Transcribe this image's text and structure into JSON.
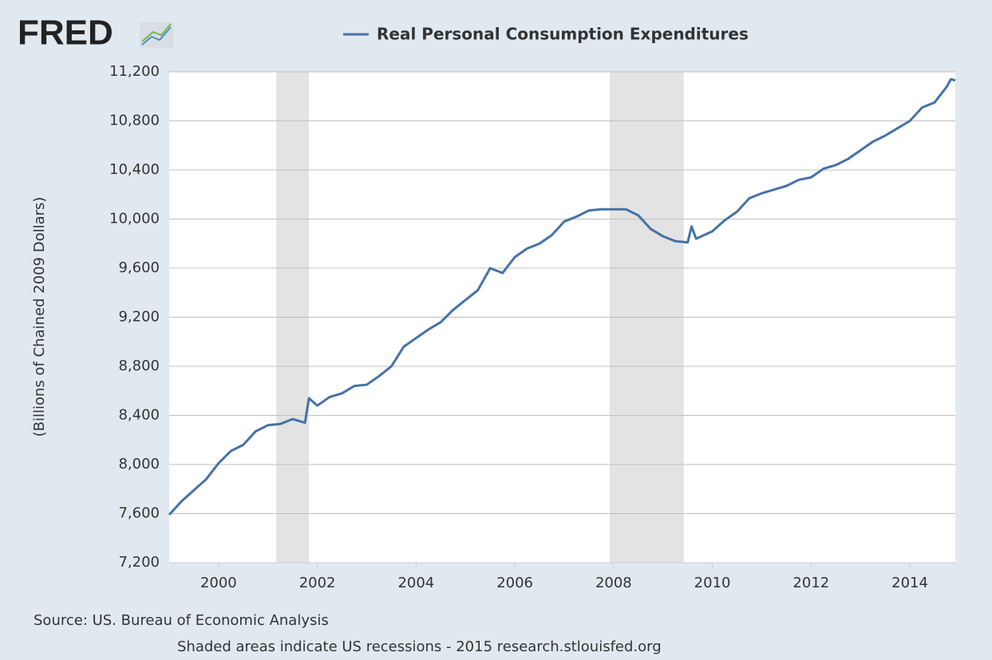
{
  "logo": "FRED",
  "chart_data": {
    "type": "line",
    "ylabel": "(Billions of Chained 2009 Dollars)",
    "source": "Source: US. Bureau of Economic Analysis",
    "note": "Shaded areas indicate US recessions - 2015 research.stlouisfed.org",
    "x": [
      1999.0,
      1999.25,
      1999.5,
      1999.75,
      2000.0,
      2000.25,
      2000.5,
      2000.75,
      2001.0,
      2001.25,
      2001.5,
      2001.75,
      2001.83,
      2002.0,
      2002.25,
      2002.5,
      2002.75,
      2003.0,
      2003.25,
      2003.5,
      2003.75,
      2004.0,
      2004.25,
      2004.5,
      2004.75,
      2005.0,
      2005.25,
      2005.5,
      2005.75,
      2006.0,
      2006.25,
      2006.5,
      2006.75,
      2007.0,
      2007.25,
      2007.5,
      2007.75,
      2008.0,
      2008.25,
      2008.5,
      2008.75,
      2009.0,
      2009.25,
      2009.5,
      2009.58,
      2009.67,
      2010.0,
      2010.25,
      2010.5,
      2010.75,
      2011.0,
      2011.25,
      2011.5,
      2011.75,
      2012.0,
      2012.25,
      2012.5,
      2012.75,
      2013.0,
      2013.25,
      2013.5,
      2013.75,
      2014.0,
      2014.25,
      2014.5,
      2014.75,
      2014.83,
      2014.92
    ],
    "series": [
      {
        "name": "Real Personal Consumption Expenditures",
        "color": "#4572a7",
        "values": [
          7590,
          7700,
          7790,
          7880,
          8010,
          8110,
          8160,
          8270,
          8320,
          8330,
          8370,
          8340,
          8540,
          8480,
          8550,
          8580,
          8640,
          8650,
          8720,
          8800,
          8960,
          9030,
          9100,
          9160,
          9260,
          9340,
          9420,
          9600,
          9560,
          9690,
          9760,
          9800,
          9870,
          9980,
          10020,
          10070,
          10080,
          10080,
          10080,
          10030,
          9920,
          9860,
          9820,
          9810,
          9940,
          9840,
          9900,
          9990,
          10060,
          10170,
          10210,
          10240,
          10270,
          10320,
          10340,
          10410,
          10440,
          10490,
          10560,
          10630,
          10680,
          10740,
          10800,
          10910,
          10950,
          11080,
          11140,
          11130
        ]
      }
    ],
    "recessions": [
      [
        2001.17,
        2001.83
      ],
      [
        2007.92,
        2009.42
      ]
    ],
    "xlim": [
      1999.0,
      2014.92
    ],
    "xticks": [
      2000,
      2002,
      2004,
      2006,
      2008,
      2010,
      2012,
      2014
    ],
    "ylim": [
      7200,
      11200
    ],
    "yticks": [
      {
        "value": 7200,
        "label": "7,200"
      },
      {
        "value": 7600,
        "label": "7,600"
      },
      {
        "value": 8000,
        "label": "8,000"
      },
      {
        "value": 8400,
        "label": "8,400"
      },
      {
        "value": 8800,
        "label": "8,800"
      },
      {
        "value": 9200,
        "label": "9,200"
      },
      {
        "value": 9600,
        "label": "9,600"
      },
      {
        "value": 10000,
        "label": "10,000"
      },
      {
        "value": 10400,
        "label": "10,400"
      },
      {
        "value": 10800,
        "label": "10,800"
      },
      {
        "value": 11200,
        "label": "11,200"
      }
    ],
    "grid": true
  }
}
